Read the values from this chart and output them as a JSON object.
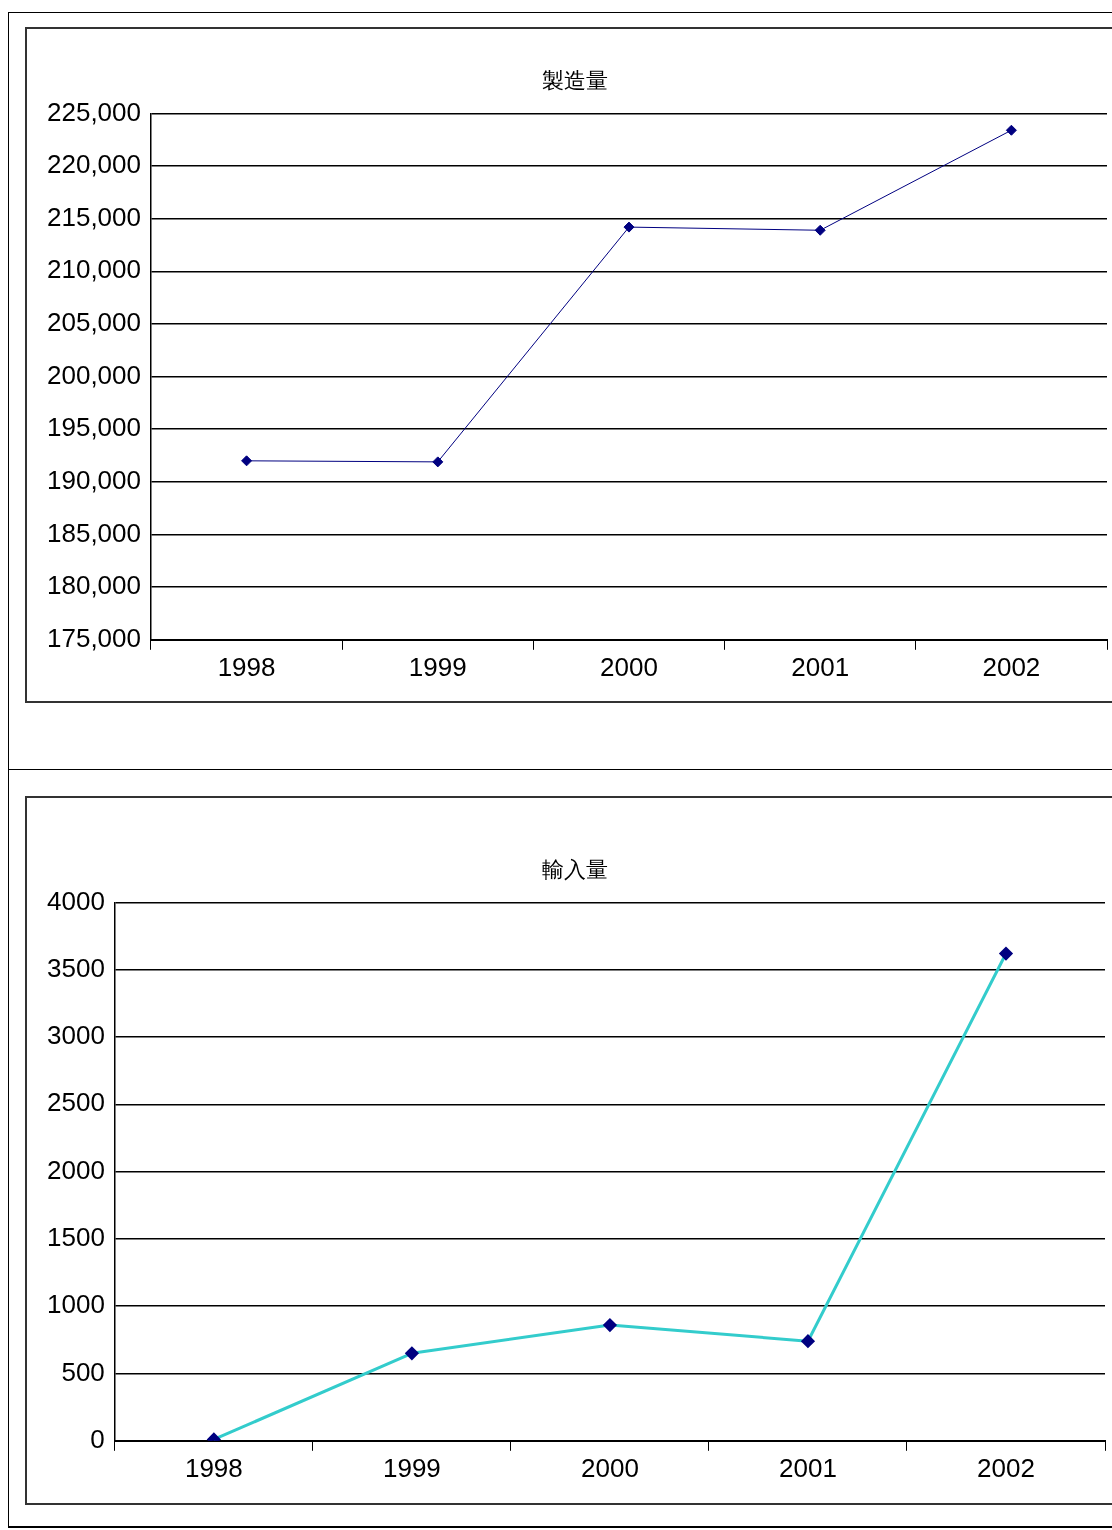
{
  "chart_data": [
    {
      "type": "line",
      "title": "製造量",
      "categories": [
        "1998",
        "1999",
        "2000",
        "2001",
        "2002"
      ],
      "series": [
        {
          "color": "#000080",
          "values": [
            192000,
            191900,
            214200,
            213900,
            223400
          ]
        }
      ],
      "ylim": [
        175000,
        225000
      ],
      "yticks": [
        {
          "value": 175000,
          "label": "175,000"
        },
        {
          "value": 180000,
          "label": "180,000"
        },
        {
          "value": 185000,
          "label": "185,000"
        },
        {
          "value": 190000,
          "label": "190,000"
        },
        {
          "value": 195000,
          "label": "195,000"
        },
        {
          "value": 200000,
          "label": "200,000"
        },
        {
          "value": 205000,
          "label": "205,000"
        },
        {
          "value": 210000,
          "label": "210,000"
        },
        {
          "value": 215000,
          "label": "215,000"
        },
        {
          "value": 220000,
          "label": "220,000"
        },
        {
          "value": 225000,
          "label": "225,000"
        }
      ],
      "grid": "y",
      "legend": false,
      "marker": "diamond",
      "line_style": "solid"
    },
    {
      "type": "line",
      "title": "輸入量",
      "categories": [
        "1998",
        "1999",
        "2000",
        "2001",
        "2002"
      ],
      "series": [
        {
          "color": "#33cccc",
          "values": [
            10,
            650,
            860,
            740,
            3620
          ]
        }
      ],
      "ylim": [
        0,
        4000
      ],
      "yticks": [
        0,
        500,
        1000,
        1500,
        2000,
        2500,
        3000,
        3500,
        4000
      ],
      "grid": "y",
      "legend": false,
      "marker": "diamond",
      "line_style": "solid"
    }
  ]
}
